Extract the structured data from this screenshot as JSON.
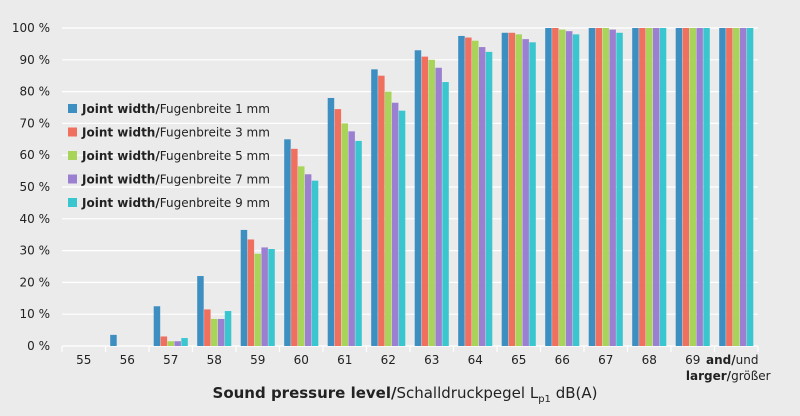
{
  "chart_data": {
    "type": "bar",
    "categories": [
      "55",
      "56",
      "57",
      "58",
      "59",
      "60",
      "61",
      "62",
      "63",
      "64",
      "65",
      "66",
      "67",
      "68",
      "69",
      "and/und"
    ],
    "last_category_lines": [
      {
        "bold": "",
        "normal": "69"
      },
      {
        "bold": "and/",
        "normal": "und"
      },
      {
        "bold": "larger/",
        "normal": "größer"
      }
    ],
    "series": [
      {
        "name_bold": "Joint width/",
        "name_rest": "Fugenbreite 1 mm",
        "color": "#3e8fc1",
        "values": [
          0,
          3.5,
          12.5,
          22,
          36.5,
          65,
          78,
          87,
          93,
          97.5,
          98.5,
          100,
          100,
          100,
          100,
          100
        ]
      },
      {
        "name_bold": "Joint width/",
        "name_rest": "Fugenbreite 3 mm",
        "color": "#f07060",
        "values": [
          0,
          0,
          3,
          11.5,
          33.5,
          62,
          74.5,
          85,
          91,
          97,
          98.5,
          100,
          100,
          100,
          100,
          100
        ]
      },
      {
        "name_bold": "Joint width/",
        "name_rest": "Fugenbreite 5 mm",
        "color": "#a8d45a",
        "values": [
          0,
          0,
          1.5,
          8.5,
          29,
          56.5,
          70,
          80,
          90,
          96,
          98,
          99.5,
          100,
          100,
          100,
          100
        ]
      },
      {
        "name_bold": "Joint width/",
        "name_rest": "Fugenbreite 7 mm",
        "color": "#9b7fd0",
        "values": [
          0,
          0,
          1.5,
          8.5,
          31,
          54,
          67.5,
          76.5,
          87.5,
          94,
          96.5,
          99,
          99.5,
          100,
          100,
          100
        ]
      },
      {
        "name_bold": "Joint width/",
        "name_rest": "Fugenbreite 9 mm",
        "color": "#3ac6cf",
        "values": [
          0,
          0,
          2.5,
          11,
          30.5,
          52,
          64.5,
          74,
          83,
          92.5,
          95.5,
          98,
          98.5,
          100,
          100,
          100
        ]
      }
    ],
    "ylim": [
      0,
      100
    ],
    "yticks": [
      "0 %",
      "10 %",
      "20 %",
      "30 %",
      "40 %",
      "50 %",
      "60 %",
      "70 %",
      "80 %",
      "90 %",
      "100 %"
    ],
    "xlabel_bold": "Sound pressure level/",
    "xlabel_rest": "Schalldruckpegel L",
    "xlabel_sub": "p1",
    "xlabel_unit": " dB(A)",
    "grid": true,
    "legend_placement": "left",
    "colors": {
      "background": "#ecebeb",
      "grid": "#ffffff"
    }
  }
}
